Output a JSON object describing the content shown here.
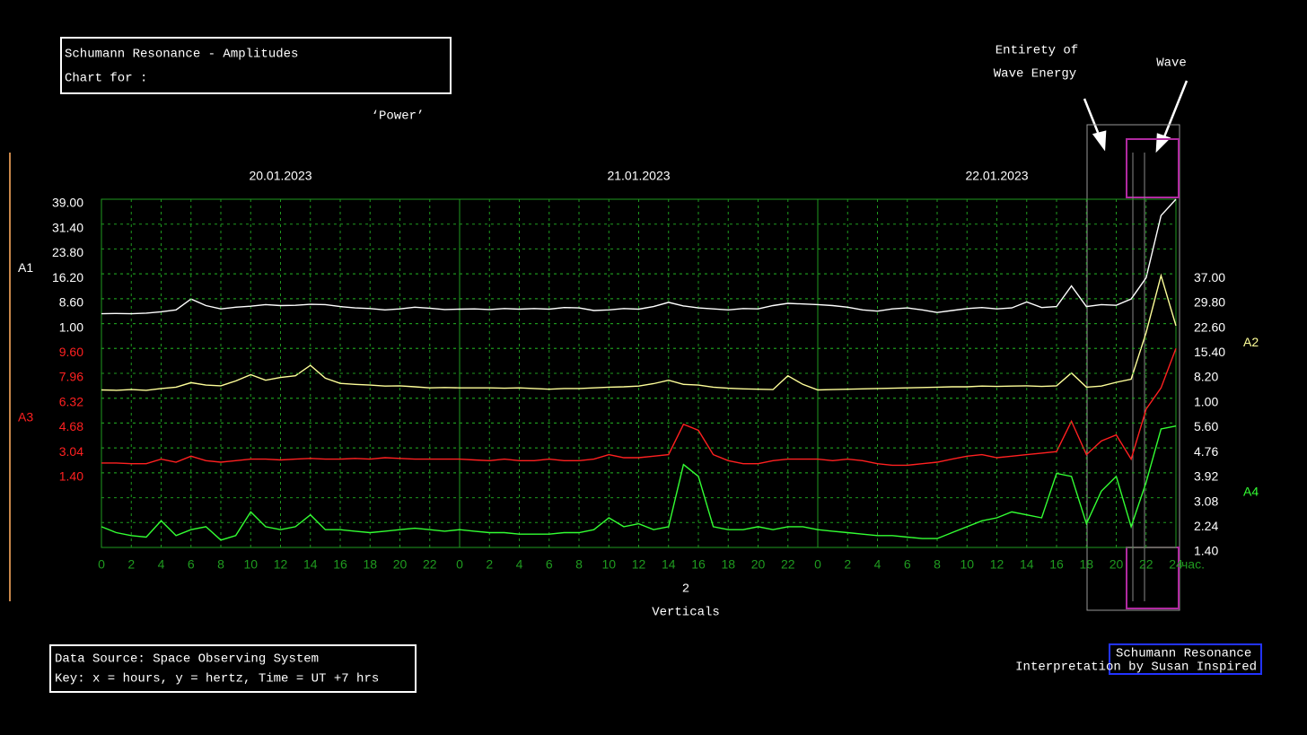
{
  "header": {
    "title_lines": [
      "Schumann Resonance - Amplitudes",
      "Chart for :"
    ],
    "subject": "‘Power’"
  },
  "annotations": {
    "entirety": [
      "Entirety of",
      "Wave Energy"
    ],
    "wave": "Wave",
    "count": "2",
    "count_label": "Verticals"
  },
  "footer": {
    "lines": [
      "Data Source: Space Observing System",
      "Key: x = hours, y = hertz, Time = UT +7 hrs"
    ]
  },
  "logo": {
    "title": "Schumann Resonance",
    "subtitle": "Interpretation by Susan Inspired"
  },
  "chart_data": {
    "type": "line",
    "dates": [
      "20.01.2023",
      "21.01.2023",
      "22.01.2023"
    ],
    "x_unit": "час.",
    "xlim": [
      0,
      72
    ],
    "xticks": [
      0,
      2,
      4,
      6,
      8,
      10,
      12,
      14,
      16,
      18,
      20,
      22,
      {
        "value": 24,
        "label": "0"
      },
      {
        "value": 26,
        "label": "2"
      },
      {
        "value": 28,
        "label": "4"
      },
      {
        "value": 30,
        "label": "6"
      },
      {
        "value": 32,
        "label": "8"
      },
      {
        "value": 34,
        "label": "10"
      },
      {
        "value": 36,
        "label": "12"
      },
      {
        "value": 38,
        "label": "14"
      },
      {
        "value": 40,
        "label": "16"
      },
      {
        "value": 42,
        "label": "18"
      },
      {
        "value": 44,
        "label": "20"
      },
      {
        "value": 46,
        "label": "22"
      },
      {
        "value": 48,
        "label": "0"
      },
      {
        "value": 50,
        "label": "2"
      },
      {
        "value": 52,
        "label": "4"
      },
      {
        "value": 54,
        "label": "6"
      },
      {
        "value": 56,
        "label": "8"
      },
      {
        "value": 58,
        "label": "10"
      },
      {
        "value": 60,
        "label": "12"
      },
      {
        "value": 62,
        "label": "14"
      },
      {
        "value": 64,
        "label": "16"
      },
      {
        "value": 66,
        "label": "18"
      },
      {
        "value": 68,
        "label": "20"
      },
      {
        "value": 70,
        "label": "22"
      },
      {
        "value": 72,
        "label": "24"
      }
    ],
    "grid": true,
    "x": [
      0,
      1,
      2,
      3,
      4,
      5,
      6,
      7,
      8,
      9,
      10,
      11,
      12,
      13,
      14,
      15,
      16,
      17,
      18,
      19,
      20,
      21,
      22,
      23,
      24,
      25,
      26,
      27,
      28,
      29,
      30,
      31,
      32,
      33,
      34,
      35,
      36,
      37,
      38,
      39,
      40,
      41,
      42,
      43,
      44,
      45,
      46,
      47,
      48,
      49,
      50,
      51,
      52,
      53,
      54,
      55,
      56,
      57,
      58,
      59,
      60,
      61,
      62,
      63,
      64,
      65,
      66,
      67,
      68,
      69,
      70,
      71,
      72
    ],
    "series": [
      {
        "name": "A1",
        "color": "#ffffff",
        "ylim": [
          1,
          39
        ],
        "yticks": [
          {
            "value": 39,
            "label": "39.00"
          },
          {
            "value": 31.4,
            "label": "31.40"
          },
          {
            "value": 23.8,
            "label": "23.80"
          },
          {
            "value": 16.2,
            "label": "16.20"
          },
          {
            "value": 8.6,
            "label": "8.60"
          },
          {
            "value": 1,
            "label": "1.00"
          }
        ],
        "values": [
          4.0,
          4.1,
          4.0,
          4.2,
          4.6,
          5.2,
          8.5,
          6.5,
          5.5,
          6.0,
          6.3,
          6.8,
          6.5,
          6.6,
          6.9,
          6.8,
          6.2,
          5.8,
          5.6,
          5.2,
          5.5,
          6.0,
          5.7,
          5.3,
          5.4,
          5.5,
          5.3,
          5.6,
          5.4,
          5.6,
          5.4,
          5.9,
          5.8,
          5.0,
          5.2,
          5.6,
          5.4,
          6.2,
          7.5,
          6.4,
          5.8,
          5.5,
          5.2,
          5.6,
          5.5,
          6.5,
          7.2,
          7.0,
          6.8,
          6.5,
          6.0,
          5.2,
          4.8,
          5.5,
          5.8,
          5.2,
          4.4,
          5.0,
          5.6,
          5.9,
          5.5,
          5.8,
          7.6,
          5.9,
          6.2,
          12.5,
          6.2,
          6.8,
          6.6,
          8.5,
          15,
          34,
          39
        ]
      },
      {
        "name": "A2",
        "color": "#ffff99",
        "ylim": [
          1,
          37
        ],
        "yticks": [
          {
            "value": 37,
            "label": "37.00"
          },
          {
            "value": 29.8,
            "label": "29.80"
          },
          {
            "value": 22.6,
            "label": "22.60"
          },
          {
            "value": 15.4,
            "label": "15.40"
          },
          {
            "value": 8.2,
            "label": "8.20"
          },
          {
            "value": 1,
            "label": "1.00"
          }
        ],
        "values": [
          3.4,
          3.3,
          3.5,
          3.3,
          3.8,
          4.2,
          5.5,
          4.8,
          4.6,
          6.0,
          7.8,
          6.2,
          7.0,
          7.5,
          10.5,
          6.8,
          5.3,
          5.0,
          4.8,
          4.5,
          4.6,
          4.3,
          4.0,
          4.1,
          4.0,
          4.0,
          4.0,
          3.9,
          4.0,
          3.8,
          3.6,
          3.8,
          3.8,
          4.0,
          4.2,
          4.3,
          4.5,
          5.2,
          6.2,
          5.0,
          4.8,
          4.2,
          3.9,
          3.7,
          3.6,
          3.5,
          7.5,
          5.0,
          3.4,
          3.5,
          3.6,
          3.7,
          3.8,
          3.9,
          4.0,
          4.1,
          4.2,
          4.3,
          4.3,
          4.5,
          4.4,
          4.5,
          4.6,
          4.4,
          4.6,
          8.3,
          4.2,
          4.5,
          5.6,
          6.5,
          20,
          36.5,
          22
        ]
      },
      {
        "name": "A3",
        "color": "#ff2020",
        "ylim": [
          1.4,
          9.6
        ],
        "yticks": [
          {
            "value": 9.6,
            "label": "9.60"
          },
          {
            "value": 7.96,
            "label": "7.96"
          },
          {
            "value": 6.32,
            "label": "6.32"
          },
          {
            "value": 4.68,
            "label": "4.68"
          },
          {
            "value": 3.04,
            "label": "3.04"
          },
          {
            "value": 1.4,
            "label": "1.40"
          }
        ],
        "values": [
          2.05,
          2.05,
          2.0,
          2.0,
          2.3,
          2.1,
          2.5,
          2.2,
          2.1,
          2.2,
          2.3,
          2.3,
          2.25,
          2.3,
          2.35,
          2.3,
          2.3,
          2.35,
          2.3,
          2.4,
          2.35,
          2.3,
          2.3,
          2.3,
          2.3,
          2.25,
          2.2,
          2.3,
          2.2,
          2.2,
          2.3,
          2.2,
          2.2,
          2.3,
          2.6,
          2.4,
          2.4,
          2.5,
          2.6,
          4.6,
          4.2,
          2.6,
          2.2,
          2.0,
          2.0,
          2.2,
          2.3,
          2.3,
          2.3,
          2.2,
          2.3,
          2.2,
          2.0,
          1.9,
          1.9,
          2.0,
          2.1,
          2.3,
          2.5,
          2.6,
          2.4,
          2.5,
          2.6,
          2.7,
          2.8,
          4.8,
          2.6,
          3.5,
          3.9,
          2.3,
          5.6,
          7.0,
          9.6
        ]
      },
      {
        "name": "A4",
        "color": "#33ff33",
        "ylim": [
          1.4,
          5.6
        ],
        "yticks": [
          {
            "value": 5.6,
            "label": "5.60"
          },
          {
            "value": 4.76,
            "label": "4.76"
          },
          {
            "value": 3.92,
            "label": "3.92"
          },
          {
            "value": 3.08,
            "label": "3.08"
          },
          {
            "value": 2.24,
            "label": "2.24"
          },
          {
            "value": 1.4,
            "label": "1.40"
          }
        ],
        "values": [
          2.1,
          1.9,
          1.8,
          1.75,
          2.3,
          1.8,
          2.0,
          2.1,
          1.65,
          1.8,
          2.6,
          2.1,
          2.0,
          2.1,
          2.5,
          2.0,
          2.0,
          1.95,
          1.9,
          1.95,
          2.0,
          2.05,
          2.0,
          1.95,
          2.0,
          1.95,
          1.9,
          1.9,
          1.85,
          1.85,
          1.85,
          1.9,
          1.9,
          2.0,
          2.4,
          2.1,
          2.2,
          2.0,
          2.1,
          4.2,
          3.8,
          2.1,
          2.0,
          2.0,
          2.1,
          2.0,
          2.1,
          2.1,
          2.0,
          1.95,
          1.9,
          1.85,
          1.8,
          1.8,
          1.75,
          1.7,
          1.7,
          1.9,
          2.1,
          2.3,
          2.4,
          2.6,
          2.5,
          2.4,
          3.9,
          3.8,
          2.2,
          3.3,
          3.8,
          2.1,
          3.6,
          5.4,
          5.5
        ]
      }
    ]
  }
}
